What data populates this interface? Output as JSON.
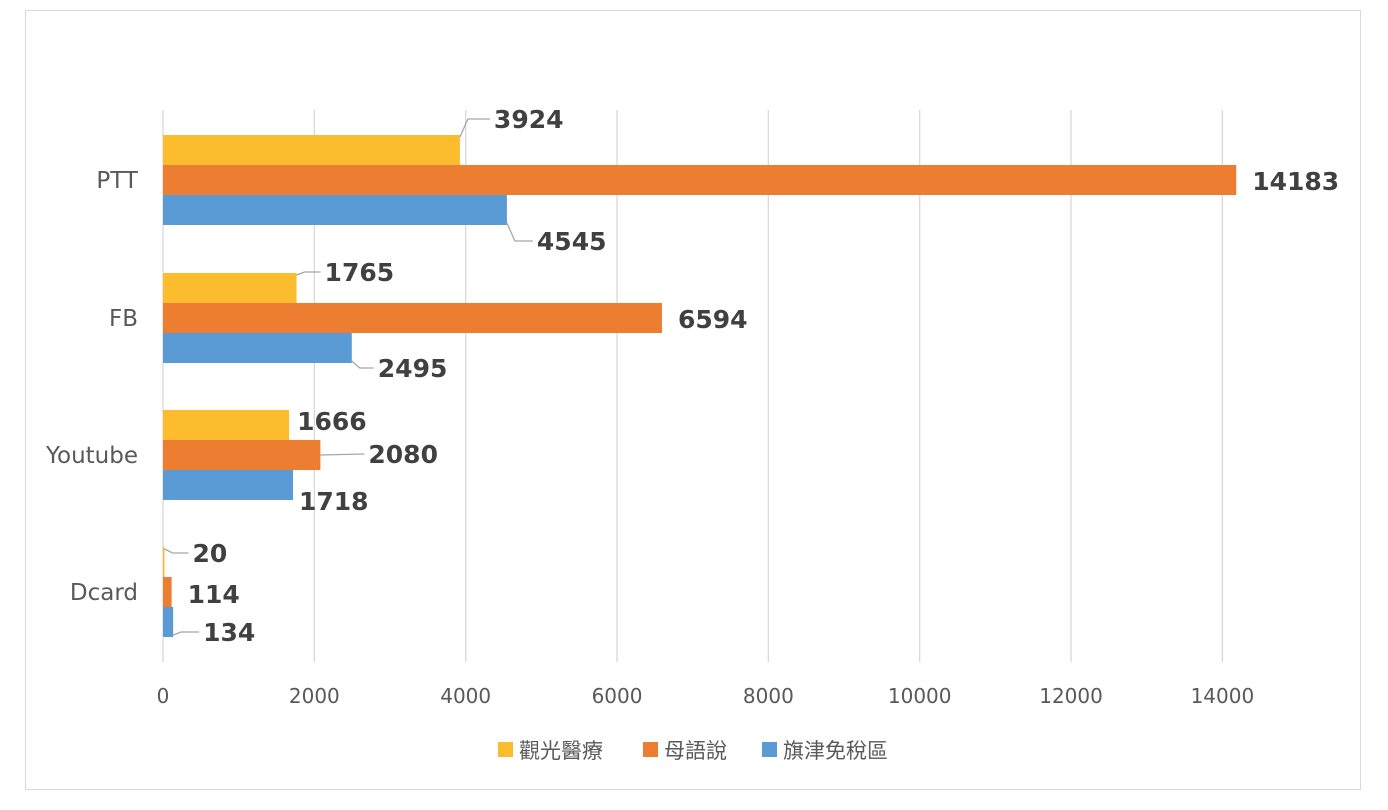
{
  "chart_data": {
    "type": "bar",
    "orientation": "horizontal",
    "title": "",
    "xlabel": "",
    "ylabel": "",
    "categories": [
      "PTT",
      "FB",
      "Youtube",
      "Dcard"
    ],
    "series": [
      {
        "name": "觀光醫療",
        "color": "#FBBC2D",
        "values": [
          3924,
          1765,
          1666,
          20
        ]
      },
      {
        "name": "母語說",
        "color": "#ED7D31",
        "values": [
          14183,
          6594,
          2080,
          114
        ]
      },
      {
        "name": "旗津免稅區",
        "color": "#5B9BD5",
        "values": [
          4545,
          2495,
          1718,
          134
        ]
      }
    ],
    "xlim": [
      0,
      15000
    ],
    "xticks": [
      0,
      2000,
      4000,
      6000,
      8000,
      10000,
      12000,
      14000
    ],
    "grid": "vertical",
    "legend": "bottom"
  }
}
